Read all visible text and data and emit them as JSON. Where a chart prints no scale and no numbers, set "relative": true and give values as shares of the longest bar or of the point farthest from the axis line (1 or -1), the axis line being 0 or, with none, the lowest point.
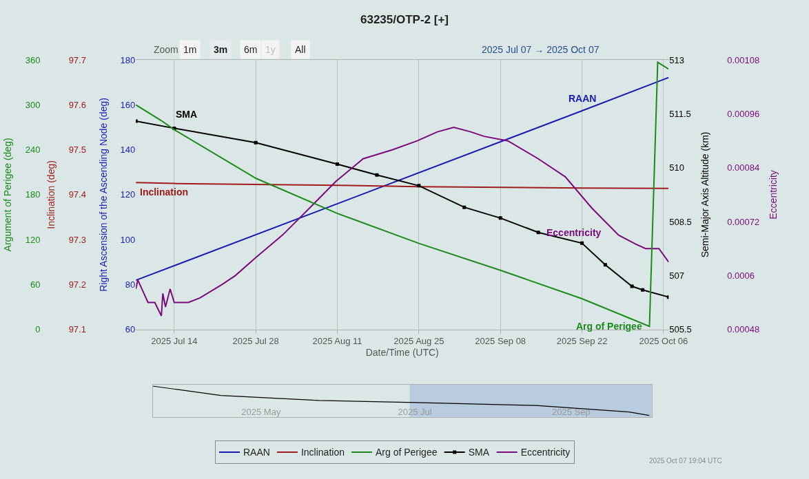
{
  "chart_data": [
    {
      "type": "line",
      "title": "63235/OTP-2 [+]",
      "xlabel": "Date/Time (UTC)",
      "ylabel": "Right Ascension of the Ascending Node (deg)",
      "y2label": "Inclination (deg)",
      "annotations": [
        "Zoom",
        "1m",
        "3m",
        "6m",
        "1y",
        "All",
        "2025 Jul 07 → 2025 Oct 07",
        "2025 Oct 07 19:04 UTC"
      ],
      "xlim": [
        "2025-07-07T10:00",
        "2025-10-06T21:00"
      ],
      "xticks": [
        {
          "value": "2025-07-14",
          "label": "2025 Jul 14"
        },
        {
          "value": "2025-07-28",
          "label": "2025 Jul 28"
        },
        {
          "value": "2025-08-11",
          "label": "2025 Aug 11"
        },
        {
          "value": "2025-08-25",
          "label": "2025 Aug 25"
        },
        {
          "value": "2025-09-08",
          "label": "2025 Sep 08"
        },
        {
          "value": "2025-09-22",
          "label": "2025 Sep 22"
        },
        {
          "value": "2025-10-06",
          "label": "2025 Oct 06"
        }
      ],
      "ylim": [
        60,
        180
      ],
      "yticks": [
        60,
        80,
        100,
        120,
        140,
        160,
        180
      ],
      "y2lim": [
        97.1,
        97.7
      ],
      "y2ticks": [
        97.1,
        97.2,
        97.3,
        97.4,
        97.5,
        97.6,
        97.7
      ],
      "grid": "x",
      "legend": "bottom",
      "series": [
        {
          "name": "RAAN",
          "color": "#1a1ab0",
          "x": [
            "2025-07-07T10:00",
            "2025-09-22",
            "2025-10-06T21:00"
          ],
          "values": [
            81.9,
            157.4,
            172.2
          ]
        },
        {
          "name": "Inclination",
          "color": "#a01c1c",
          "axis": "y2",
          "x": [
            "2025-07-07T10:00",
            "2025-07-14",
            "2025-08-11",
            "2025-08-25",
            "2025-09-22",
            "2025-10-06T21:00"
          ],
          "values": [
            97.427,
            97.425,
            97.421,
            97.418,
            97.415,
            97.414
          ]
        }
      ]
    },
    {
      "type": "line",
      "ylabel": "Semi-Major Axis Altitude (km)",
      "y2label": "Eccentricity",
      "tick_labels": "y",
      "legend": "bottom",
      "xlim": [
        "2025-07-07T10:00",
        "2025-10-06T21:00"
      ],
      "ylim": [
        505.5,
        513
      ],
      "yticks": [
        505.5,
        507,
        508.5,
        510,
        511.5,
        513
      ],
      "y2lim": [
        0.00048,
        0.00108
      ],
      "y2ticks": [
        0.00048,
        0.0006,
        0.00072,
        0.00084,
        0.00096,
        0.00108
      ],
      "series": [
        {
          "name": "SMA",
          "color": "#000000",
          "marker": "square",
          "x": [
            "2025-07-07T10:00",
            "2025-07-14",
            "2025-07-28",
            "2025-08-11",
            "2025-08-17T19:00",
            "2025-08-25",
            "2025-09-01T19:00",
            "2025-09-08",
            "2025-09-14T12:00",
            "2025-09-22",
            "2025-09-26",
            "2025-09-30T14:00",
            "2025-10-02T10:00",
            "2025-10-06T21:00"
          ],
          "values": [
            511.3,
            511.1,
            510.7,
            510.1,
            509.8,
            509.5,
            508.9,
            508.6,
            508.2,
            507.9,
            507.3,
            506.7,
            506.6,
            506.4
          ]
        },
        {
          "name": "Eccentricity",
          "color": "#7a0a7a",
          "axis": "y2",
          "x": [
            "2025-07-07T10:00",
            "2025-07-07T18:00",
            "2025-07-09T12:00",
            "2025-07-10T16:00",
            "2025-07-11T19:00",
            "2025-07-12T01:00",
            "2025-07-12T12:00",
            "2025-07-13T07:00",
            "2025-07-14",
            "2025-07-16T10:00",
            "2025-07-18T10:00",
            "2025-07-22T05:00",
            "2025-07-24T12:00",
            "2025-07-28",
            "2025-08-01T14:00",
            "2025-08-06T05:00",
            "2025-08-10T19:00",
            "2025-08-15T10:00",
            "2025-08-20T10:00",
            "2025-08-24T17:00",
            "2025-08-28T04:00",
            "2025-08-31",
            "2025-09-02T22:00",
            "2025-09-05T05:00",
            "2025-09-09T07:00",
            "2025-09-14T12:00",
            "2025-09-19T03:00",
            "2025-09-23T17:00",
            "2025-09-28T07:00",
            "2025-10-01T05:00",
            "2025-10-02T22:00",
            "2025-10-05T05:00",
            "2025-10-06T21:00"
          ],
          "values": [
            0.00057,
            0.00059,
            0.00054,
            0.00054,
            0.00051,
            0.00056,
            0.00053,
            0.00057,
            0.00054,
            0.00054,
            0.00055,
            0.00058,
            0.0006,
            0.00064,
            0.00069,
            0.00075,
            0.00081,
            0.00086,
            0.00088,
            0.0009,
            0.00092,
            0.00093,
            0.00092,
            0.00091,
            0.0009,
            0.00086,
            0.00082,
            0.00075,
            0.00069,
            0.00067,
            0.00066,
            0.00066,
            0.00063
          ]
        }
      ]
    },
    {
      "type": "line",
      "ylabel": "Argument of Perigee (deg)",
      "tick_labels": "y",
      "legend": "bottom",
      "xlim": [
        "2025-07-07T10:00",
        "2025-10-06T21:00"
      ],
      "ylim": [
        0,
        360
      ],
      "yticks": [
        0,
        60,
        120,
        180,
        240,
        300,
        360
      ],
      "series": [
        {
          "name": "Arg of Perigee",
          "color": "#1a8a1a",
          "x": [
            "2025-07-07T10:00",
            "2025-07-11T19:00",
            "2025-07-14",
            "2025-07-28",
            "2025-08-11",
            "2025-08-25",
            "2025-09-08",
            "2025-09-22",
            "2025-10-03T14:00",
            "2025-10-05",
            "2025-10-06T21:00"
          ],
          "values": [
            300,
            279,
            267,
            202,
            155,
            115,
            79,
            41,
            4,
            357,
            348
          ]
        }
      ]
    },
    {
      "type": "line",
      "relative": true,
      "tick_labels": "x",
      "xlim": [
        "2025-03-19",
        "2025-10-03"
      ],
      "xticks": [
        {
          "value": "2025-05-01",
          "label": "2025 May"
        },
        {
          "value": "2025-07-01",
          "label": "2025 Jul"
        },
        {
          "value": "2025-09-01",
          "label": "2025 Sep"
        }
      ],
      "bands": [
        {
          "axis": "x",
          "from": "2025-06-29",
          "to": "2025-10-03",
          "color": "#b0c4dc"
        }
      ],
      "series": [
        {
          "color": "#000000",
          "x": [
            "2025-03-19",
            "2025-04-15",
            "2025-05-24",
            "2025-07-01",
            "2025-08-18",
            "2025-09-24",
            "2025-10-02"
          ],
          "values": [
            1,
            0.68,
            0.51,
            0.44,
            0.34,
            0.12,
            0
          ]
        }
      ]
    }
  ]
}
